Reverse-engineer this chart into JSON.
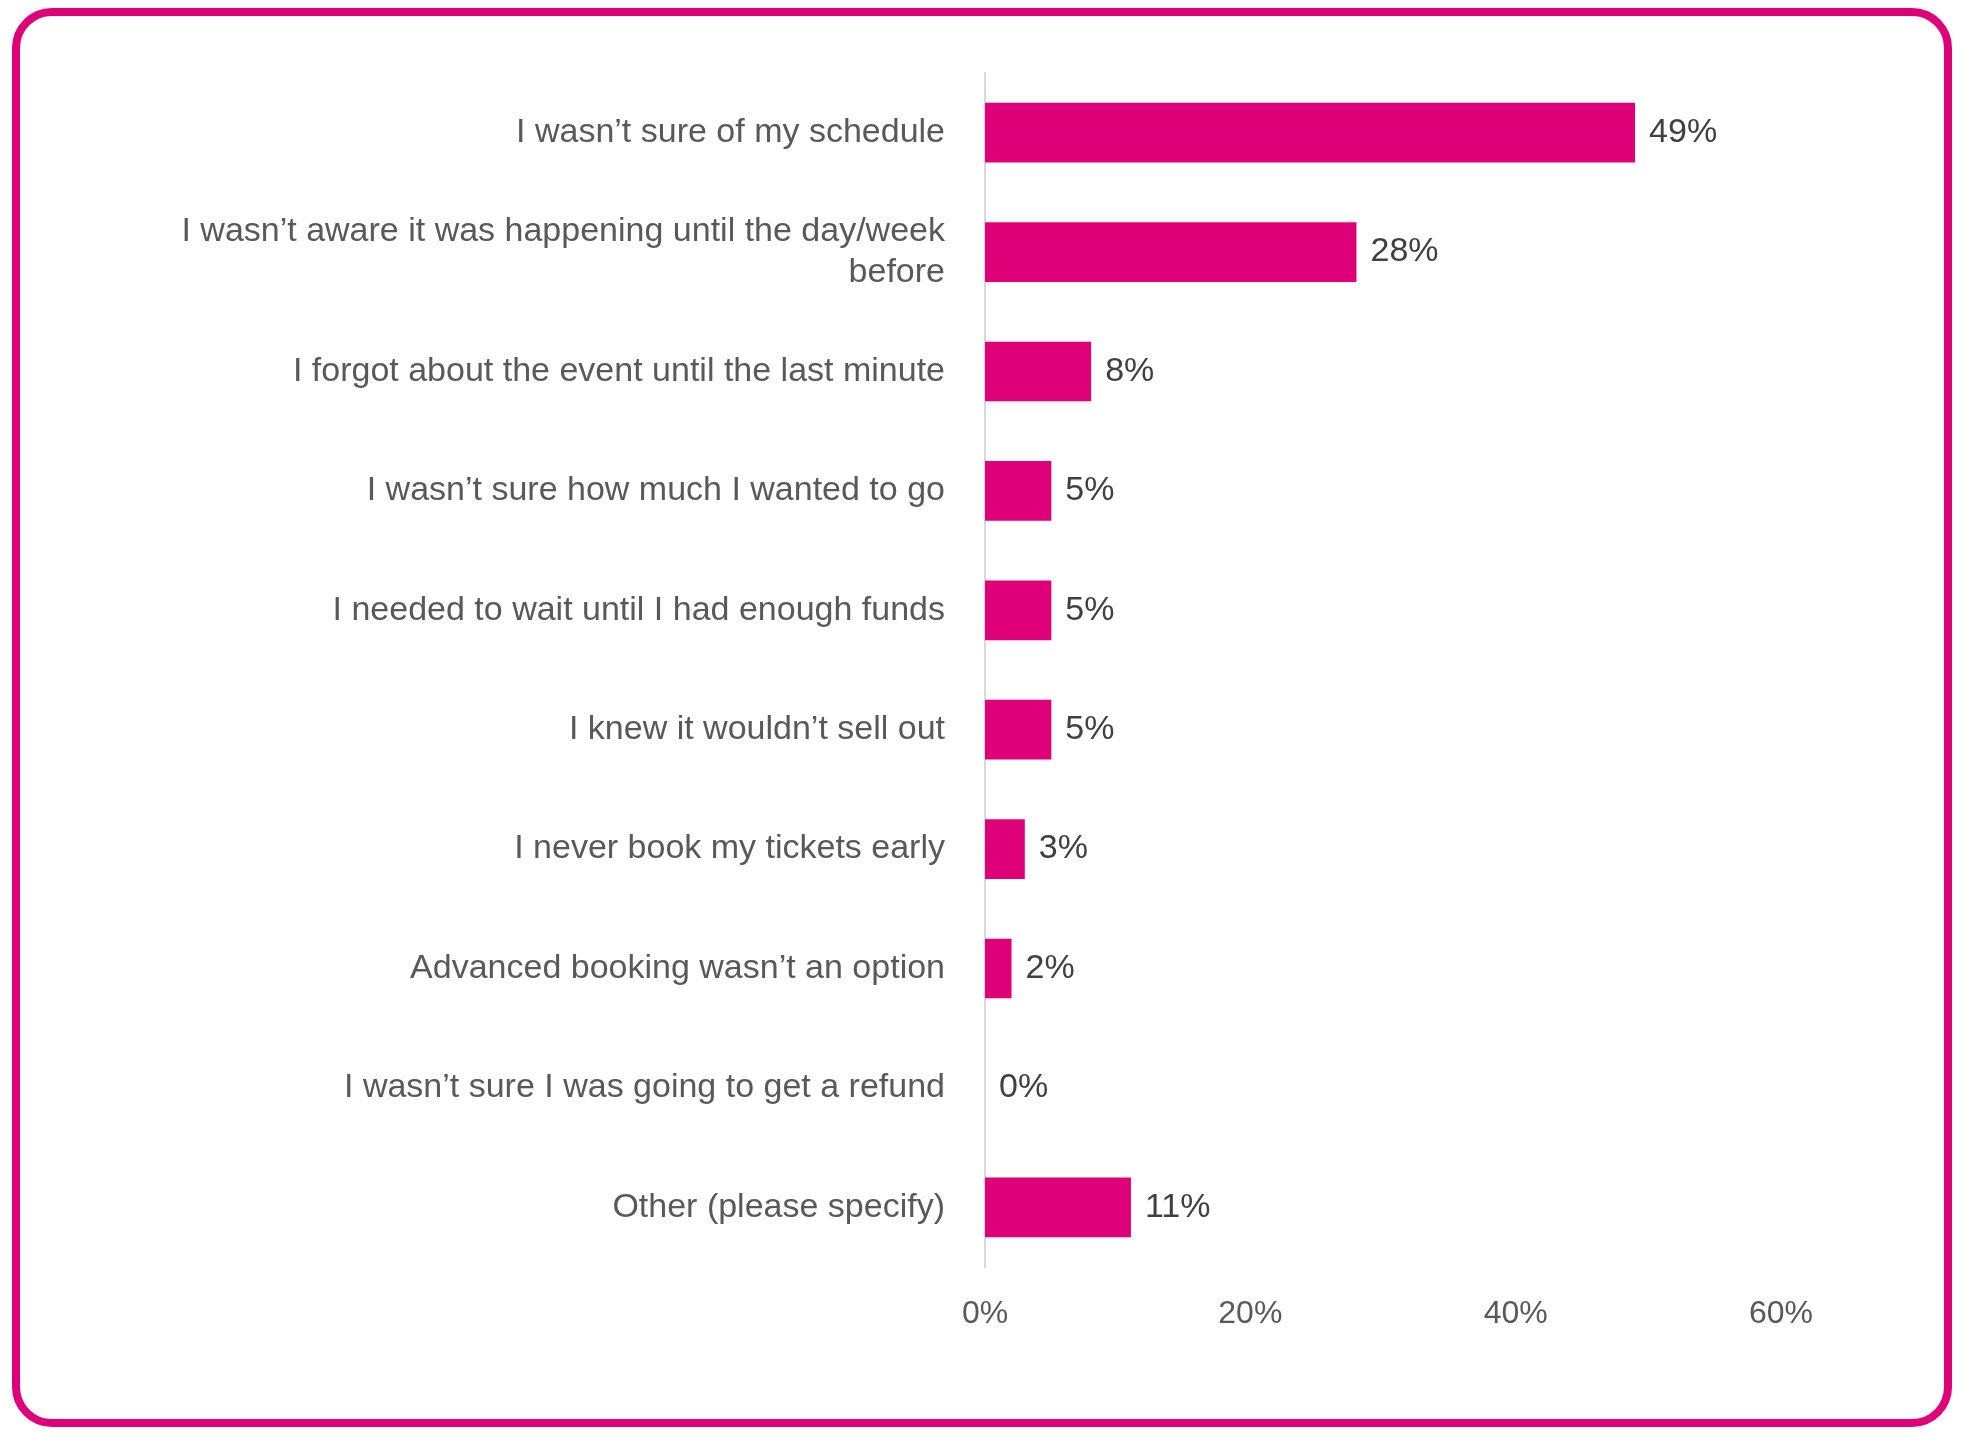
{
  "chart_data": {
    "type": "bar",
    "orientation": "horizontal",
    "categories": [
      "I wasn’t sure of my schedule",
      "I wasn’t aware it was happening until the day/week before",
      "I forgot about the event until the last minute",
      "I wasn’t sure how much I wanted to go",
      "I needed to wait until I had enough funds",
      "I knew it wouldn’t sell out",
      "I never book my tickets early",
      "Advanced booking wasn’t an option",
      "I wasn’t sure I was going to get a refund",
      "Other (please specify)"
    ],
    "values": [
      49,
      28,
      8,
      5,
      5,
      5,
      3,
      2,
      0,
      11
    ],
    "value_labels": [
      "49%",
      "28%",
      "8%",
      "5%",
      "5%",
      "5%",
      "3%",
      "2%",
      "0%",
      "11%"
    ],
    "color": "#df0079",
    "xlim": [
      0,
      60
    ],
    "xticks": [
      {
        "value": 0,
        "label": "0%"
      },
      {
        "value": 20,
        "label": "20%"
      },
      {
        "value": 40,
        "label": "40%"
      },
      {
        "value": 60,
        "label": "60%"
      }
    ],
    "grid": false,
    "legend": false
  }
}
